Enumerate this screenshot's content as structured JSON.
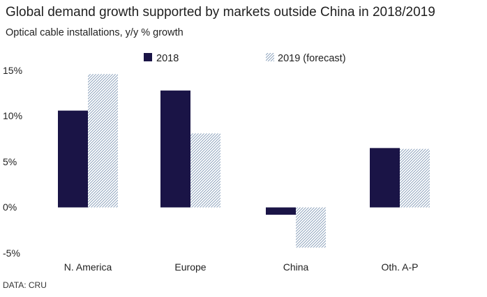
{
  "header": {
    "title": "Global demand growth supported by markets outside China in 2018/2019",
    "subtitle": "Optical cable installations, y/y % growth"
  },
  "footer": {
    "source": "DATA: CRU"
  },
  "colors": {
    "series_2018": "#1a1446",
    "series_2019_hatch": "#7f98b5",
    "axis": "#999999"
  },
  "chart_data": {
    "type": "bar",
    "title": "Global demand growth supported by markets outside China in 2018/2019",
    "subtitle": "Optical cable installations, y/y % growth",
    "xlabel": "",
    "ylabel": "",
    "categories": [
      "N. America",
      "Europe",
      "China",
      "Oth. A-P"
    ],
    "series": [
      {
        "name": "2018",
        "style": "solid",
        "values": [
          10.6,
          12.8,
          -0.8,
          6.5
        ]
      },
      {
        "name": "2019 (forecast)",
        "style": "hatched",
        "values": [
          14.6,
          8.1,
          -4.4,
          6.4
        ]
      }
    ],
    "ylim": [
      -5,
      15
    ],
    "yticks": [
      15,
      10,
      5,
      0,
      -5
    ],
    "ytick_labels": [
      "15%",
      "10%",
      "5%",
      "0%",
      "-5%"
    ],
    "grid": false,
    "legend_position": "top"
  }
}
